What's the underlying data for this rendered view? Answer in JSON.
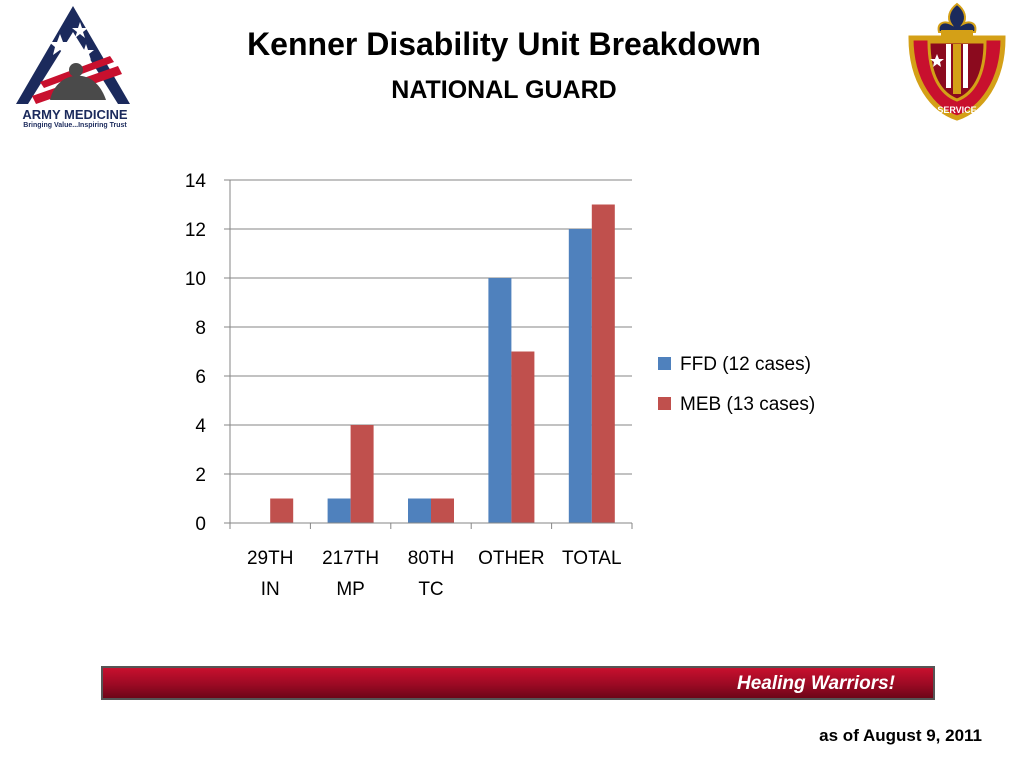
{
  "slide": {
    "title": "Kenner Disability Unit Breakdown",
    "subtitle": "NATIONAL GUARD",
    "footer_banner": "Healing Warriors!",
    "as_of": "as of August 9, 2011"
  },
  "logos": {
    "left_name": "ARMY MEDICINE",
    "left_tagline": "Bringing Value...Inspiring Trust",
    "right_words": [
      "MEDICINE",
      "HEALTH",
      "SERVICE"
    ]
  },
  "colors": {
    "ffd": "#4f81bd",
    "meb": "#c0504d",
    "banner": "#9b0a24",
    "grid": "#868686"
  },
  "chart_data": {
    "type": "bar",
    "categories": [
      [
        "29TH",
        "IN"
      ],
      [
        "217TH",
        "MP"
      ],
      [
        "80TH",
        "TC"
      ],
      [
        "OTHER"
      ],
      [
        "TOTAL"
      ]
    ],
    "series": [
      {
        "name": "FFD (12 cases)",
        "values": [
          0,
          1,
          1,
          10,
          12
        ]
      },
      {
        "name": "MEB (13 cases)",
        "values": [
          1,
          4,
          1,
          7,
          13
        ]
      }
    ],
    "ylim": [
      0,
      14
    ],
    "yticks": [
      "0",
      "2",
      "4",
      "6",
      "8",
      "10",
      "12",
      "14"
    ],
    "grid": true,
    "legend": "right"
  }
}
